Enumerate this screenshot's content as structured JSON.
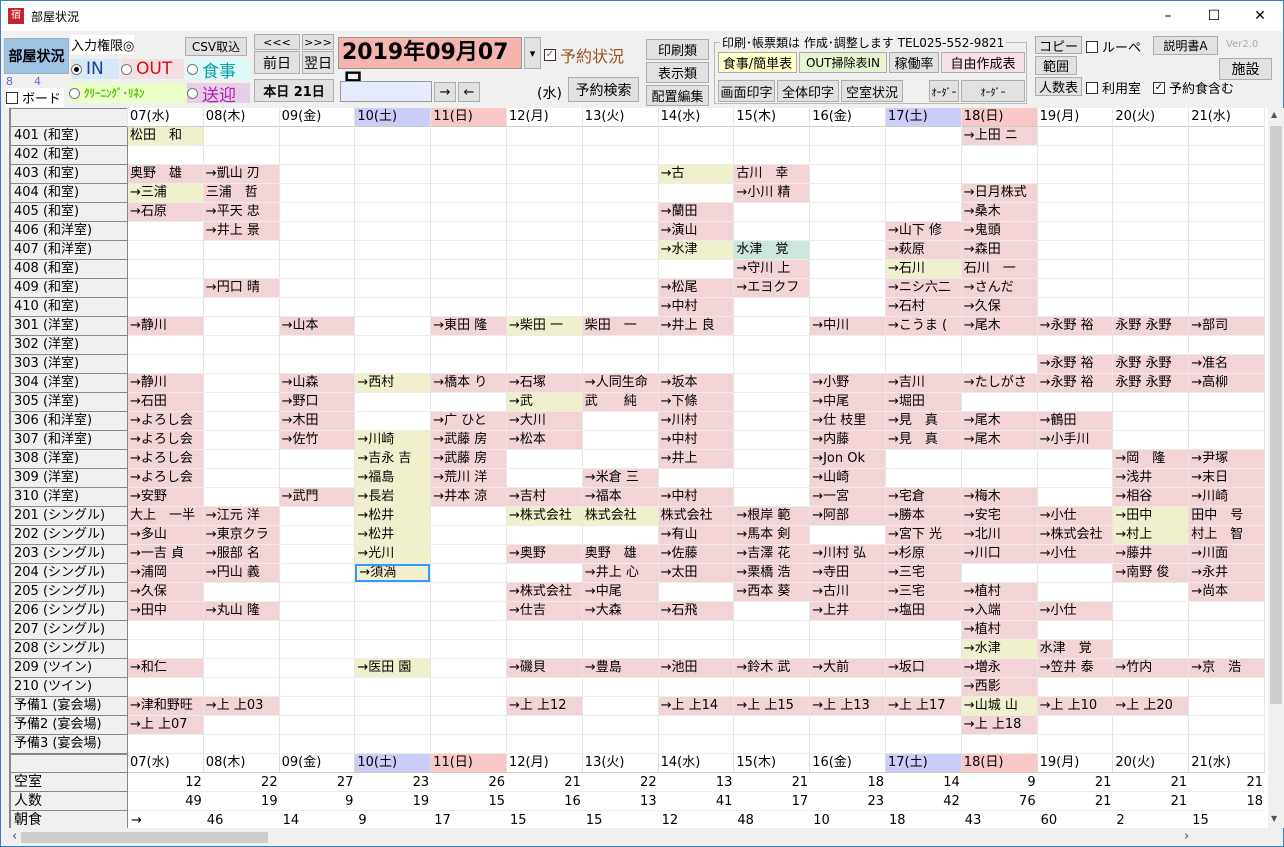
{
  "window": {
    "title": "部屋状況",
    "icon": "宿",
    "minimize": "–",
    "maximize": "☐",
    "close": "✕"
  },
  "toolbar": {
    "room_status": "部屋状況",
    "input_auth": "入力権限◎",
    "csv_import": "CSV取込",
    "radio_in": "IN",
    "radio_out": "OUT",
    "radio_meal": "食事",
    "radio_cleaning": "ｸﾘｰﾆﾝｸﾞ･ﾘﾈﾝ",
    "radio_transfer": "送迎",
    "count_a": "8",
    "count_b": "4",
    "board": "ボード",
    "prev_week": "<<<",
    "next_week": ">>>",
    "prev_day": "前日",
    "next_day": "翌日",
    "today": "本日 21日",
    "date": "2019年09月07日",
    "dropdown": "▾",
    "reservation_status": "予約状況",
    "reservation_status_checked": true,
    "search_value": "",
    "arrow_right": "→",
    "arrow_left": "←",
    "weekday": "(水)",
    "reservation_search": "予約検索",
    "print": "印刷類",
    "display": "表示類",
    "layout_edit": "配置編集",
    "group_label": "印刷･帳票類は 作成･調整します TEL025-552-9821",
    "meal_simple": "食事/簡単表",
    "out_clean": "OUT掃除表IN",
    "occupancy": "稼働率",
    "free_table": "自由作成表",
    "screen_print": "画面印字",
    "all_print": "全体印字",
    "vacancy": "空室状況",
    "order1": "ｵｰﾀﾞｰ",
    "order2": "ｵｰﾀﾞｰ",
    "copy": "コピー",
    "loupe": "ルーペ",
    "manual": "説明書A",
    "version": "Ver2.0",
    "range": "範囲",
    "facility": "施設",
    "headcount": "人数表",
    "used_rooms": "利用室",
    "include_meals": "予約食含む",
    "include_meals_checked": true
  },
  "colors": {
    "p": "#f2d4d6",
    "y": "#f0f0cc",
    "g": "#cce6dc",
    "sat": "#ccccf8",
    "sun": "#f8c8c8",
    "selected": "#3399ff",
    "date_bg": "#f5b5ae"
  },
  "days": [
    {
      "label": "07(水)",
      "type": ""
    },
    {
      "label": "08(木)",
      "type": ""
    },
    {
      "label": "09(金)",
      "type": ""
    },
    {
      "label": "10(土)",
      "type": "sat"
    },
    {
      "label": "11(日)",
      "type": "sun"
    },
    {
      "label": "12(月)",
      "type": ""
    },
    {
      "label": "13(火)",
      "type": ""
    },
    {
      "label": "14(水)",
      "type": ""
    },
    {
      "label": "15(木)",
      "type": ""
    },
    {
      "label": "16(金)",
      "type": ""
    },
    {
      "label": "17(土)",
      "type": "sat"
    },
    {
      "label": "18(日)",
      "type": "sun"
    },
    {
      "label": "19(月)",
      "type": ""
    },
    {
      "label": "20(火)",
      "type": ""
    },
    {
      "label": "21(水)",
      "type": ""
    }
  ],
  "rooms": [
    {
      "label": "401 (和室)",
      "cells": [
        [
          0,
          "松田　和",
          "y"
        ],
        [
          11,
          "→上田 ニ",
          "p"
        ]
      ]
    },
    {
      "label": "402 (和室)",
      "cells": []
    },
    {
      "label": "403 (和室)",
      "cells": [
        [
          0,
          "奥野　雄",
          "p"
        ],
        [
          1,
          "→凱山 刃",
          "p"
        ],
        [
          7,
          "→古",
          "y"
        ],
        [
          8,
          "古川　幸",
          "p"
        ]
      ]
    },
    {
      "label": "404 (和室)",
      "cells": [
        [
          0,
          "→三浦",
          "y"
        ],
        [
          1,
          "三浦　哲",
          "p"
        ],
        [
          8,
          "→小川 精",
          "p"
        ],
        [
          11,
          "→日月株式",
          "p"
        ]
      ]
    },
    {
      "label": "405 (和室)",
      "cells": [
        [
          0,
          "→石原",
          "p"
        ],
        [
          1,
          "→平天 忠",
          "p"
        ],
        [
          7,
          "→蘭田",
          "p"
        ],
        [
          11,
          "→桑木",
          "p"
        ]
      ]
    },
    {
      "label": "406 (和洋室)",
      "cells": [
        [
          1,
          "→井上 景",
          "p"
        ],
        [
          7,
          "→演山",
          "p"
        ],
        [
          10,
          "→山下 修",
          "p"
        ],
        [
          11,
          "→鬼頭",
          "p"
        ]
      ]
    },
    {
      "label": "407 (和洋室)",
      "cells": [
        [
          7,
          "→水津",
          "y"
        ],
        [
          8,
          "水津　覚",
          "g"
        ],
        [
          10,
          "→萩原",
          "p"
        ],
        [
          11,
          "→森田",
          "p"
        ]
      ]
    },
    {
      "label": "408 (和室)",
      "cells": [
        [
          8,
          "→守川 上",
          "p"
        ],
        [
          10,
          "→石川",
          "y"
        ],
        [
          11,
          "石川　一",
          "p"
        ]
      ]
    },
    {
      "label": "409 (和室)",
      "cells": [
        [
          1,
          "→円口 晴",
          "p"
        ],
        [
          7,
          "→松尾",
          "p"
        ],
        [
          8,
          "→エヨクフ",
          "p"
        ],
        [
          10,
          "→ニシ六二",
          "p"
        ],
        [
          11,
          "→さんだ",
          "p"
        ]
      ]
    },
    {
      "label": "410 (和室)",
      "cells": [
        [
          7,
          "→中村",
          "p"
        ],
        [
          10,
          "→石村",
          "p"
        ],
        [
          11,
          "→久保",
          "p"
        ]
      ]
    },
    {
      "label": "301 (洋室)",
      "cells": [
        [
          0,
          "→静川",
          "p"
        ],
        [
          2,
          "→山本",
          "p"
        ],
        [
          4,
          "→東田 隆",
          "p"
        ],
        [
          5,
          "→柴田 一",
          "y"
        ],
        [
          6,
          "柴田　一",
          "p"
        ],
        [
          7,
          "→井上 良",
          "p"
        ],
        [
          9,
          "→中川",
          "p"
        ],
        [
          10,
          "→こうま (",
          "p"
        ],
        [
          11,
          "→尾木",
          "p"
        ],
        [
          12,
          "→永野 裕",
          "p"
        ],
        [
          13,
          "永野 永野",
          "p"
        ],
        [
          14,
          "→部司",
          "p"
        ]
      ]
    },
    {
      "label": "302 (洋室)",
      "cells": []
    },
    {
      "label": "303 (洋室)",
      "cells": [
        [
          12,
          "→永野 裕",
          "p"
        ],
        [
          13,
          "永野 永野",
          "p"
        ],
        [
          14,
          "→准名",
          "p"
        ]
      ]
    },
    {
      "label": "304 (洋室)",
      "cells": [
        [
          0,
          "→静川",
          "p"
        ],
        [
          2,
          "→山森",
          "p"
        ],
        [
          3,
          "→西村",
          "y"
        ],
        [
          4,
          "→橋本 り",
          "p"
        ],
        [
          5,
          "→石塚",
          "p"
        ],
        [
          6,
          "→人同生命",
          "p"
        ],
        [
          7,
          "→坂本",
          "p"
        ],
        [
          9,
          "→小野",
          "p"
        ],
        [
          10,
          "→吉川",
          "p"
        ],
        [
          11,
          "→たしがさ",
          "p"
        ],
        [
          12,
          "→永野 裕",
          "p"
        ],
        [
          13,
          "永野 永野",
          "p"
        ],
        [
          14,
          "→高柳",
          "p"
        ]
      ]
    },
    {
      "label": "305 (洋室)",
      "cells": [
        [
          0,
          "→石田",
          "p"
        ],
        [
          2,
          "→野口",
          "p"
        ],
        [
          5,
          "→武",
          "y"
        ],
        [
          6,
          "武　　純",
          "p"
        ],
        [
          7,
          "→下條",
          "p"
        ],
        [
          9,
          "→中尾",
          "p"
        ],
        [
          10,
          "→堀田",
          "p"
        ]
      ]
    },
    {
      "label": "306 (和洋室)",
      "cells": [
        [
          0,
          "→よろし会",
          "p"
        ],
        [
          2,
          "→木田",
          "p"
        ],
        [
          4,
          "→广 ひと",
          "p"
        ],
        [
          5,
          "→大川",
          "p"
        ],
        [
          7,
          "→川村",
          "p"
        ],
        [
          9,
          "→仕 枝里",
          "p"
        ],
        [
          10,
          "→見　真",
          "p"
        ],
        [
          11,
          "→尾木",
          "p"
        ],
        [
          12,
          "→鶴田",
          "p"
        ]
      ]
    },
    {
      "label": "307 (和洋室)",
      "cells": [
        [
          0,
          "→よろし会",
          "p"
        ],
        [
          2,
          "→佐竹",
          "p"
        ],
        [
          3,
          "→川崎",
          "y"
        ],
        [
          4,
          "→武藤 房",
          "p"
        ],
        [
          5,
          "→松本",
          "p"
        ],
        [
          7,
          "→中村",
          "p"
        ],
        [
          9,
          "→内藤",
          "p"
        ],
        [
          10,
          "→見　真",
          "p"
        ],
        [
          11,
          "→尾木",
          "p"
        ],
        [
          12,
          "→小手川",
          "p"
        ]
      ]
    },
    {
      "label": "308 (洋室)",
      "cells": [
        [
          0,
          "→よろし会",
          "p"
        ],
        [
          3,
          "→吉永 吉",
          "y"
        ],
        [
          4,
          "→武藤 房",
          "p"
        ],
        [
          7,
          "→井上",
          "p"
        ],
        [
          9,
          "→Jon Ok",
          "p"
        ],
        [
          13,
          "→岡　隆",
          "p"
        ],
        [
          14,
          "→尹塚",
          "p"
        ]
      ]
    },
    {
      "label": "309 (洋室)",
      "cells": [
        [
          0,
          "→よろし会",
          "p"
        ],
        [
          3,
          "→福島",
          "y"
        ],
        [
          4,
          "→荒川 洋",
          "p"
        ],
        [
          6,
          "→米倉 三",
          "p"
        ],
        [
          9,
          "→山崎",
          "p"
        ],
        [
          13,
          "→浅井",
          "p"
        ],
        [
          14,
          "→末日",
          "p"
        ]
      ]
    },
    {
      "label": "310 (洋室)",
      "cells": [
        [
          0,
          "→安野",
          "p"
        ],
        [
          2,
          "→武門",
          "p"
        ],
        [
          3,
          "→長岩",
          "y"
        ],
        [
          4,
          "→井本 涼",
          "p"
        ],
        [
          5,
          "→吉村",
          "p"
        ],
        [
          6,
          "→福本",
          "p"
        ],
        [
          7,
          "→中村",
          "p"
        ],
        [
          9,
          "→一宮",
          "p"
        ],
        [
          10,
          "→宅倉",
          "p"
        ],
        [
          11,
          "→梅木",
          "p"
        ],
        [
          13,
          "→相谷",
          "p"
        ],
        [
          14,
          "→川崎",
          "p"
        ]
      ]
    },
    {
      "label": "201 (シングル)",
      "cells": [
        [
          0,
          "大上　一半",
          "p"
        ],
        [
          1,
          "→江元 洋",
          "p"
        ],
        [
          3,
          "→松井",
          "y"
        ],
        [
          5,
          "→株式会社",
          "y"
        ],
        [
          6,
          "株式会社",
          "y"
        ],
        [
          7,
          "株式会社",
          "p"
        ],
        [
          8,
          "→根岸 範",
          "p"
        ],
        [
          9,
          "→阿部",
          "p"
        ],
        [
          10,
          "→勝本",
          "p"
        ],
        [
          11,
          "→安宅",
          "p"
        ],
        [
          12,
          "→小仕",
          "p"
        ],
        [
          13,
          "→田中",
          "y"
        ],
        [
          14,
          "田中　号",
          "p"
        ]
      ]
    },
    {
      "label": "202 (シングル)",
      "cells": [
        [
          0,
          "→多山",
          "p"
        ],
        [
          1,
          "→東京クラ",
          "p"
        ],
        [
          3,
          "→松井",
          "y"
        ],
        [
          7,
          "→有山",
          "p"
        ],
        [
          8,
          "→馬本 剣",
          "p"
        ],
        [
          10,
          "→宮下 光",
          "p"
        ],
        [
          11,
          "→北川",
          "p"
        ],
        [
          12,
          "→株式会社",
          "p"
        ],
        [
          13,
          "→村上",
          "y"
        ],
        [
          14,
          "村上　智",
          "p"
        ]
      ]
    },
    {
      "label": "203 (シングル)",
      "cells": [
        [
          0,
          "→一吉 貞",
          "p"
        ],
        [
          1,
          "→服部 名",
          "p"
        ],
        [
          3,
          "→光川",
          "y"
        ],
        [
          5,
          "→奥野",
          "p"
        ],
        [
          6,
          "奥野　雄",
          "p"
        ],
        [
          7,
          "→佐藤",
          "p"
        ],
        [
          8,
          "→吉澤 花",
          "p"
        ],
        [
          9,
          "→川村 弘",
          "p"
        ],
        [
          10,
          "→杉原",
          "p"
        ],
        [
          11,
          "→川口",
          "p"
        ],
        [
          12,
          "→小仕",
          "p"
        ],
        [
          13,
          "→藤井",
          "p"
        ],
        [
          14,
          "→川面",
          "p"
        ]
      ]
    },
    {
      "label": "204 (シングル)",
      "cells": [
        [
          0,
          "→浦岡",
          "p"
        ],
        [
          1,
          "→円山 義",
          "p"
        ],
        [
          3,
          "→須渦",
          "y",
          true
        ],
        [
          6,
          "→井上 心",
          "p"
        ],
        [
          7,
          "→太田",
          "p"
        ],
        [
          8,
          "→栗橋 浩",
          "p"
        ],
        [
          9,
          "→寺田",
          "p"
        ],
        [
          10,
          "→三宅",
          "p"
        ],
        [
          13,
          "→南野 俊",
          "p"
        ],
        [
          14,
          "→永井",
          "p"
        ]
      ]
    },
    {
      "label": "205 (シングル)",
      "cells": [
        [
          0,
          "→久保",
          "p"
        ],
        [
          5,
          "→株式会社",
          "p"
        ],
        [
          6,
          "→中尾",
          "p"
        ],
        [
          8,
          "→西本 葵",
          "p"
        ],
        [
          9,
          "→古川",
          "p"
        ],
        [
          10,
          "→三宅",
          "p"
        ],
        [
          11,
          "→植村",
          "p"
        ],
        [
          14,
          "→尚本",
          "p"
        ]
      ]
    },
    {
      "label": "206 (シングル)",
      "cells": [
        [
          0,
          "→田中",
          "p"
        ],
        [
          1,
          "→丸山 隆",
          "p"
        ],
        [
          5,
          "→仕吉",
          "p"
        ],
        [
          6,
          "→大森",
          "p"
        ],
        [
          7,
          "→石飛",
          "p"
        ],
        [
          9,
          "→上井",
          "p"
        ],
        [
          10,
          "→塩田",
          "p"
        ],
        [
          11,
          "→入端",
          "p"
        ],
        [
          12,
          "→小仕",
          "p"
        ]
      ]
    },
    {
      "label": "207 (シングル)",
      "cells": [
        [
          11,
          "→植村",
          "p"
        ]
      ]
    },
    {
      "label": "208 (シングル)",
      "cells": [
        [
          11,
          "→水津",
          "y"
        ],
        [
          12,
          "水津　覚",
          "p"
        ]
      ]
    },
    {
      "label": "209 (ツイン)",
      "cells": [
        [
          0,
          "→和仁",
          "p"
        ],
        [
          3,
          "→医田 園",
          "y"
        ],
        [
          5,
          "→磯貝",
          "p"
        ],
        [
          6,
          "→豊島",
          "p"
        ],
        [
          7,
          "→池田",
          "p"
        ],
        [
          8,
          "→鈴木 武",
          "p"
        ],
        [
          9,
          "→大前",
          "p"
        ],
        [
          10,
          "→坂口",
          "p"
        ],
        [
          11,
          "→増永",
          "p"
        ],
        [
          12,
          "→笠井 泰",
          "p"
        ],
        [
          13,
          "→竹内",
          "p"
        ],
        [
          14,
          "→京　浩",
          "p"
        ]
      ]
    },
    {
      "label": "210 (ツイン)",
      "cells": [
        [
          11,
          "→西影",
          "p"
        ]
      ]
    },
    {
      "label": "予備1 (宴会場)",
      "cells": [
        [
          0,
          "→津和野旺",
          "p"
        ],
        [
          1,
          "→上 上03",
          "p"
        ],
        [
          5,
          "→上 上12",
          "p"
        ],
        [
          7,
          "→上 上14",
          "p"
        ],
        [
          8,
          "→上 上15",
          "p"
        ],
        [
          9,
          "→上 上13",
          "p"
        ],
        [
          10,
          "→上 上17",
          "p"
        ],
        [
          11,
          "→山城 山",
          "y"
        ],
        [
          12,
          "→上 上10",
          "p"
        ],
        [
          13,
          "→上 上20",
          "p"
        ]
      ]
    },
    {
      "label": "予備2 (宴会場)",
      "cells": [
        [
          0,
          "→上 上07",
          "p"
        ],
        [
          11,
          "→上 上18",
          "p"
        ]
      ]
    },
    {
      "label": "予備3 (宴会場)",
      "cells": []
    }
  ],
  "summary": [
    {
      "label": "空室",
      "values": [
        "12",
        "22",
        "27",
        "23",
        "26",
        "21",
        "22",
        "13",
        "21",
        "18",
        "14",
        "9",
        "21",
        "21",
        "21"
      ],
      "align": "right"
    },
    {
      "label": "人数",
      "values": [
        "49",
        "19",
        "9",
        "19",
        "15",
        "16",
        "13",
        "41",
        "17",
        "23",
        "42",
        "76",
        "21",
        "21",
        "18"
      ],
      "align": "right"
    },
    {
      "label": "朝食",
      "values": [
        "→",
        "46",
        "14",
        "9",
        "17",
        "15",
        "15",
        "12",
        "48",
        "10",
        "18",
        "43",
        "60",
        "2",
        "15"
      ],
      "align": "left"
    }
  ],
  "scroll": {
    "up": "▲",
    "down": "▼",
    "left": "‹",
    "right": "›"
  }
}
